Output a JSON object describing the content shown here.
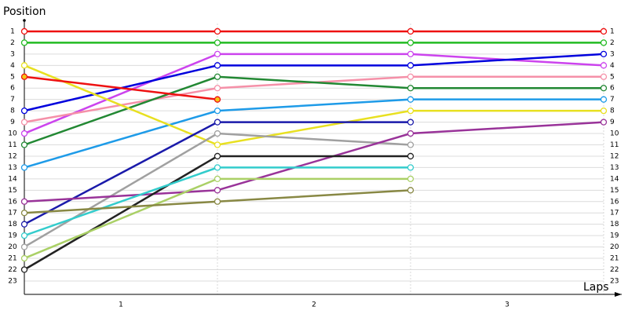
{
  "chart_data": {
    "type": "line",
    "y_label": "Position",
    "x_label": "Laps",
    "x": [
      0,
      1,
      2,
      3
    ],
    "xlim": [
      0,
      3
    ],
    "xticks": [
      {
        "value": 0.5,
        "label": "1"
      },
      {
        "value": 1.5,
        "label": "2"
      },
      {
        "value": 2.5,
        "label": "3"
      }
    ],
    "ylim": [
      24,
      0
    ],
    "yticks": [
      1,
      2,
      3,
      4,
      5,
      6,
      7,
      8,
      9,
      10,
      11,
      12,
      13,
      14,
      15,
      16,
      17,
      18,
      19,
      20,
      21,
      22,
      23
    ],
    "grid": true,
    "series": [
      {
        "color": "#ee1111",
        "values": [
          1,
          1,
          1,
          1
        ]
      },
      {
        "color": "#22bb22",
        "values": [
          2,
          2,
          2,
          2
        ]
      },
      {
        "color": "#cc44ee",
        "values": [
          10,
          3,
          3,
          4
        ]
      },
      {
        "color": "#0000dd",
        "values": [
          8,
          4,
          4,
          3
        ]
      },
      {
        "color": "#f590a8",
        "values": [
          9,
          6,
          5,
          5
        ]
      },
      {
        "color": "#228833",
        "values": [
          11,
          5,
          6,
          6
        ]
      },
      {
        "color": "#1e9be8",
        "values": [
          13,
          8,
          7,
          7
        ]
      },
      {
        "color": "#e8e020",
        "values": [
          4,
          11,
          8,
          8
        ]
      },
      {
        "color": "#ee1111",
        "marker_fill": "#f5c518",
        "values": [
          5,
          7,
          null,
          null
        ]
      },
      {
        "color": "#1a1aaa",
        "values": [
          18,
          9,
          9,
          null
        ]
      },
      {
        "color": "#a0a0a0",
        "values": [
          20,
          10,
          11,
          null
        ]
      },
      {
        "color": "#993399",
        "values": [
          16,
          15,
          10,
          9
        ]
      },
      {
        "color": "#222222",
        "values": [
          22,
          12,
          12,
          null
        ]
      },
      {
        "color": "#33cccc",
        "values": [
          19,
          13,
          13,
          null
        ]
      },
      {
        "color": "#aad066",
        "values": [
          21,
          14,
          14,
          null
        ]
      },
      {
        "color": "#888844",
        "values": [
          17,
          16,
          15,
          null
        ]
      }
    ]
  }
}
